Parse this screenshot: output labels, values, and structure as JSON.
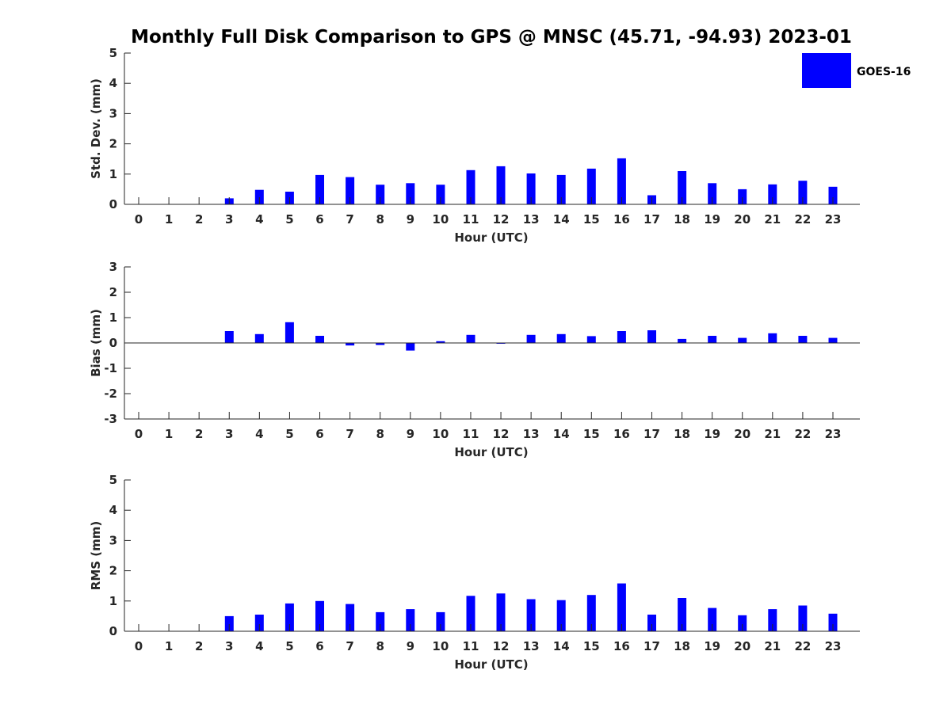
{
  "chart_data": {
    "type": "bar",
    "title": "Monthly Full Disk Comparison to GPS @ MNSC (45.71, -94.93) 2023-01",
    "bar_color": "#0000FF",
    "axis_color": "#262626",
    "legend": {
      "label": "GOES-16",
      "placement": "top-right"
    },
    "panels": [
      {
        "id": "stddev",
        "ylabel": "Std. Dev. (mm)",
        "xlabel": "Hour (UTC)",
        "ylim": [
          0,
          5
        ],
        "yticks": [
          0,
          1,
          2,
          3,
          4,
          5
        ],
        "categories": [
          0,
          1,
          2,
          3,
          4,
          5,
          6,
          7,
          8,
          9,
          10,
          11,
          12,
          13,
          14,
          15,
          16,
          17,
          18,
          19,
          20,
          21,
          22,
          23
        ],
        "series": [
          {
            "name": "GOES-16",
            "values": [
              null,
              null,
              null,
              0.2,
              0.48,
              0.42,
              0.97,
              0.9,
              0.65,
              0.7,
              0.65,
              1.13,
              1.26,
              1.02,
              0.97,
              1.18,
              1.52,
              0.3,
              1.1,
              0.7,
              0.5,
              0.66,
              0.78,
              0.58
            ]
          }
        ]
      },
      {
        "id": "bias",
        "ylabel": "Bias (mm)",
        "xlabel": "Hour (UTC)",
        "ylim": [
          -3,
          3
        ],
        "yticks": [
          -3,
          -2,
          -1,
          0,
          1,
          2,
          3
        ],
        "zero_line": true,
        "categories": [
          0,
          1,
          2,
          3,
          4,
          5,
          6,
          7,
          8,
          9,
          10,
          11,
          12,
          13,
          14,
          15,
          16,
          17,
          18,
          19,
          20,
          21,
          22,
          23
        ],
        "series": [
          {
            "name": "GOES-16",
            "values": [
              null,
              null,
              null,
              0.47,
              0.35,
              0.82,
              0.28,
              -0.1,
              -0.08,
              -0.3,
              0.07,
              0.32,
              0.0,
              0.32,
              0.35,
              0.27,
              0.47,
              0.5,
              0.16,
              0.28,
              0.2,
              0.38,
              0.28,
              0.2
            ]
          }
        ]
      },
      {
        "id": "rms",
        "ylabel": "RMS (mm)",
        "xlabel": "Hour (UTC)",
        "ylim": [
          0,
          5
        ],
        "yticks": [
          0,
          1,
          2,
          3,
          4,
          5
        ],
        "categories": [
          0,
          1,
          2,
          3,
          4,
          5,
          6,
          7,
          8,
          9,
          10,
          11,
          12,
          13,
          14,
          15,
          16,
          17,
          18,
          19,
          20,
          21,
          22,
          23
        ],
        "series": [
          {
            "name": "GOES-16",
            "values": [
              null,
              null,
              null,
              0.5,
              0.55,
              0.92,
              1.0,
              0.9,
              0.63,
              0.73,
              0.63,
              1.17,
              1.25,
              1.06,
              1.03,
              1.2,
              1.58,
              0.55,
              1.1,
              0.77,
              0.53,
              0.73,
              0.85,
              0.58
            ]
          }
        ]
      }
    ]
  }
}
